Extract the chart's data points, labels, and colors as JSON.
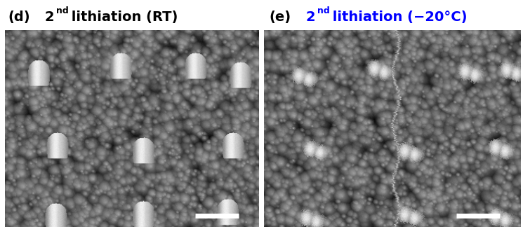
{
  "left_label_letter": "(d)",
  "left_title_num": "2",
  "left_title_super": "nd",
  "left_title_rest": " lithiation (RT)",
  "right_label_letter": "(e)",
  "right_title_num": "2",
  "right_title_super": "nd",
  "right_title_rest": " lithiation (−20°C)",
  "left_title_color": "black",
  "right_title_color": "#0000ff",
  "letter_color": "black",
  "bg_color": "#ffffff",
  "fig_width": 7.45,
  "fig_height": 3.27,
  "title_fontsize": 14,
  "letter_fontsize": 14,
  "superscript_fontsize": 9,
  "scalebar_color": "#ffffff"
}
